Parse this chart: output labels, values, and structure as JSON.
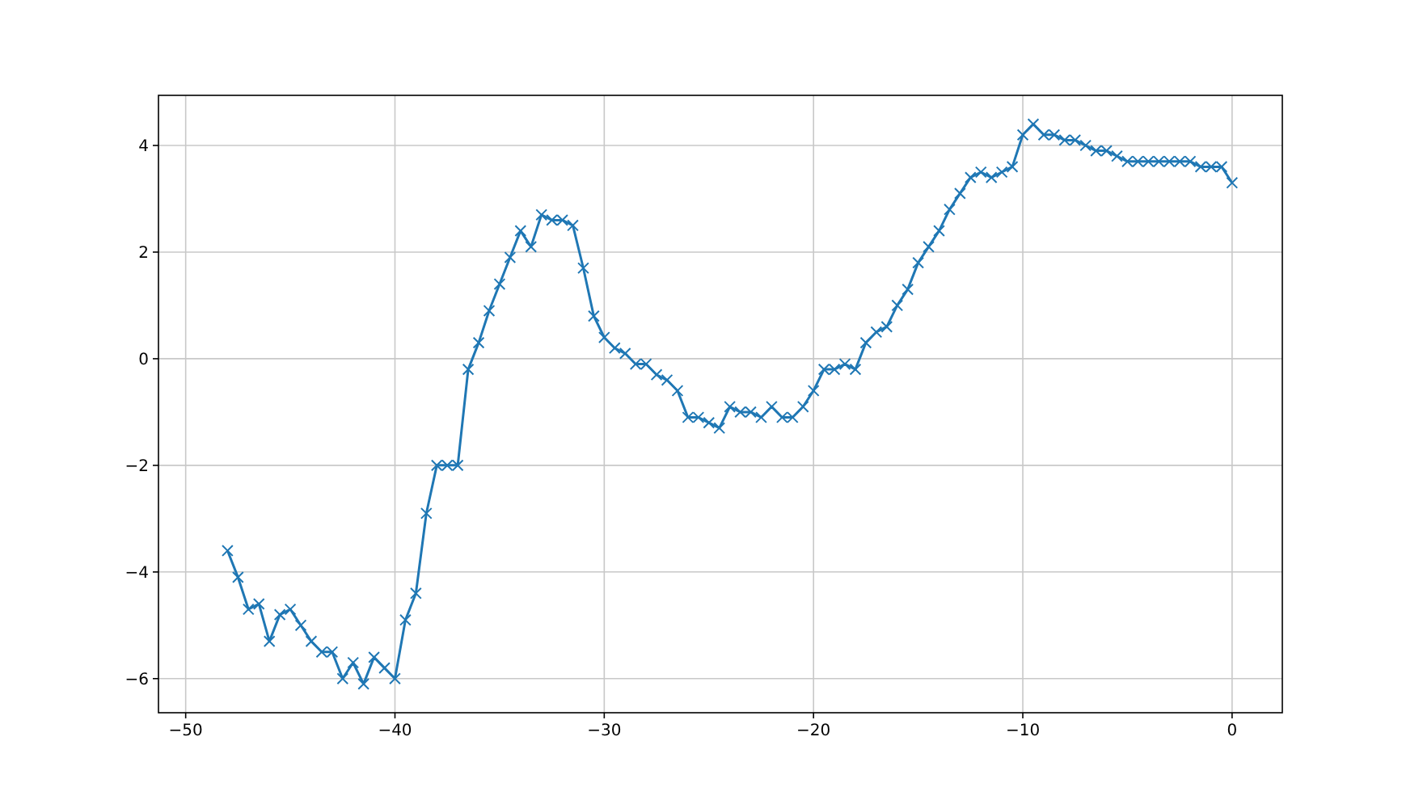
{
  "chart_data": {
    "type": "line",
    "x": [
      -48,
      -47.5,
      -47,
      -46.5,
      -46,
      -45.5,
      -45,
      -44.5,
      -44,
      -43.5,
      -43,
      -42.5,
      -42,
      -41.5,
      -41,
      -40.5,
      -40,
      -39.5,
      -39,
      -38.5,
      -38,
      -37.5,
      -37,
      -36.5,
      -36,
      -35.5,
      -35,
      -34.5,
      -34,
      -33.5,
      -33,
      -32.5,
      -32,
      -31.5,
      -31,
      -30.5,
      -30,
      -29.5,
      -29,
      -28.5,
      -28,
      -27.5,
      -27,
      -26.5,
      -26,
      -25.5,
      -25,
      -24.5,
      -24,
      -23.5,
      -23,
      -22.5,
      -22,
      -21.5,
      -21,
      -20.5,
      -20,
      -19.5,
      -19,
      -18.5,
      -18,
      -17.5,
      -17,
      -16.5,
      -16,
      -15.5,
      -15,
      -14.5,
      -14,
      -13.5,
      -13,
      -12.5,
      -12,
      -11.5,
      -11,
      -10.5,
      -10,
      -9.5,
      -9,
      -8.5,
      -8,
      -7.5,
      -7,
      -6.5,
      -6,
      -5.5,
      -5,
      -4.5,
      -4,
      -3.5,
      -3,
      -2.5,
      -2,
      -1.5,
      -1,
      -0.5,
      0
    ],
    "series": [
      {
        "color": "#1f77b4",
        "values": [
          -3.6,
          -4.1,
          -4.7,
          -4.6,
          -5.3,
          -4.8,
          -4.7,
          -5.0,
          -5.3,
          -5.5,
          -5.5,
          -6.0,
          -5.7,
          -6.1,
          -5.6,
          -5.8,
          -6.0,
          -4.9,
          -4.4,
          -2.9,
          -2.0,
          -2.0,
          -2.0,
          -0.2,
          0.3,
          0.9,
          1.4,
          1.9,
          2.4,
          2.1,
          2.7,
          2.6,
          2.6,
          2.5,
          1.7,
          0.8,
          0.4,
          0.2,
          0.1,
          -0.1,
          -0.1,
          -0.3,
          -0.4,
          -0.6,
          -1.1,
          -1.1,
          -1.2,
          -1.3,
          -0.9,
          -1.0,
          -1.0,
          -1.1,
          -0.9,
          -1.1,
          -1.1,
          -0.9,
          -0.6,
          -0.2,
          -0.2,
          -0.1,
          -0.2,
          0.3,
          0.5,
          0.6,
          1.0,
          1.3,
          1.8,
          2.1,
          2.4,
          2.8,
          3.1,
          3.4,
          3.5,
          3.4,
          3.5,
          3.6,
          4.2,
          4.4,
          4.2,
          4.2,
          4.1,
          4.1,
          4.0,
          3.9,
          3.9,
          3.8,
          3.7,
          3.7,
          3.7,
          3.7,
          3.7,
          3.7,
          3.7,
          3.6,
          3.6,
          3.6,
          3.3
        ]
      }
    ],
    "xlim": [
      -51.3,
      2.4
    ],
    "xticks": [
      {
        "value": -50,
        "label": "−50"
      },
      {
        "value": -40,
        "label": "−40"
      },
      {
        "value": -30,
        "label": "−30"
      },
      {
        "value": -20,
        "label": "−20"
      },
      {
        "value": -10,
        "label": "−10"
      },
      0
    ],
    "ylim": [
      -6.64,
      4.94
    ],
    "yticks": [
      {
        "value": -6,
        "label": "−6"
      },
      {
        "value": -4,
        "label": "−4"
      },
      {
        "value": -2,
        "label": "−2"
      },
      0,
      2,
      4
    ],
    "grid": true,
    "marker": "cross",
    "line_style": "solid"
  }
}
